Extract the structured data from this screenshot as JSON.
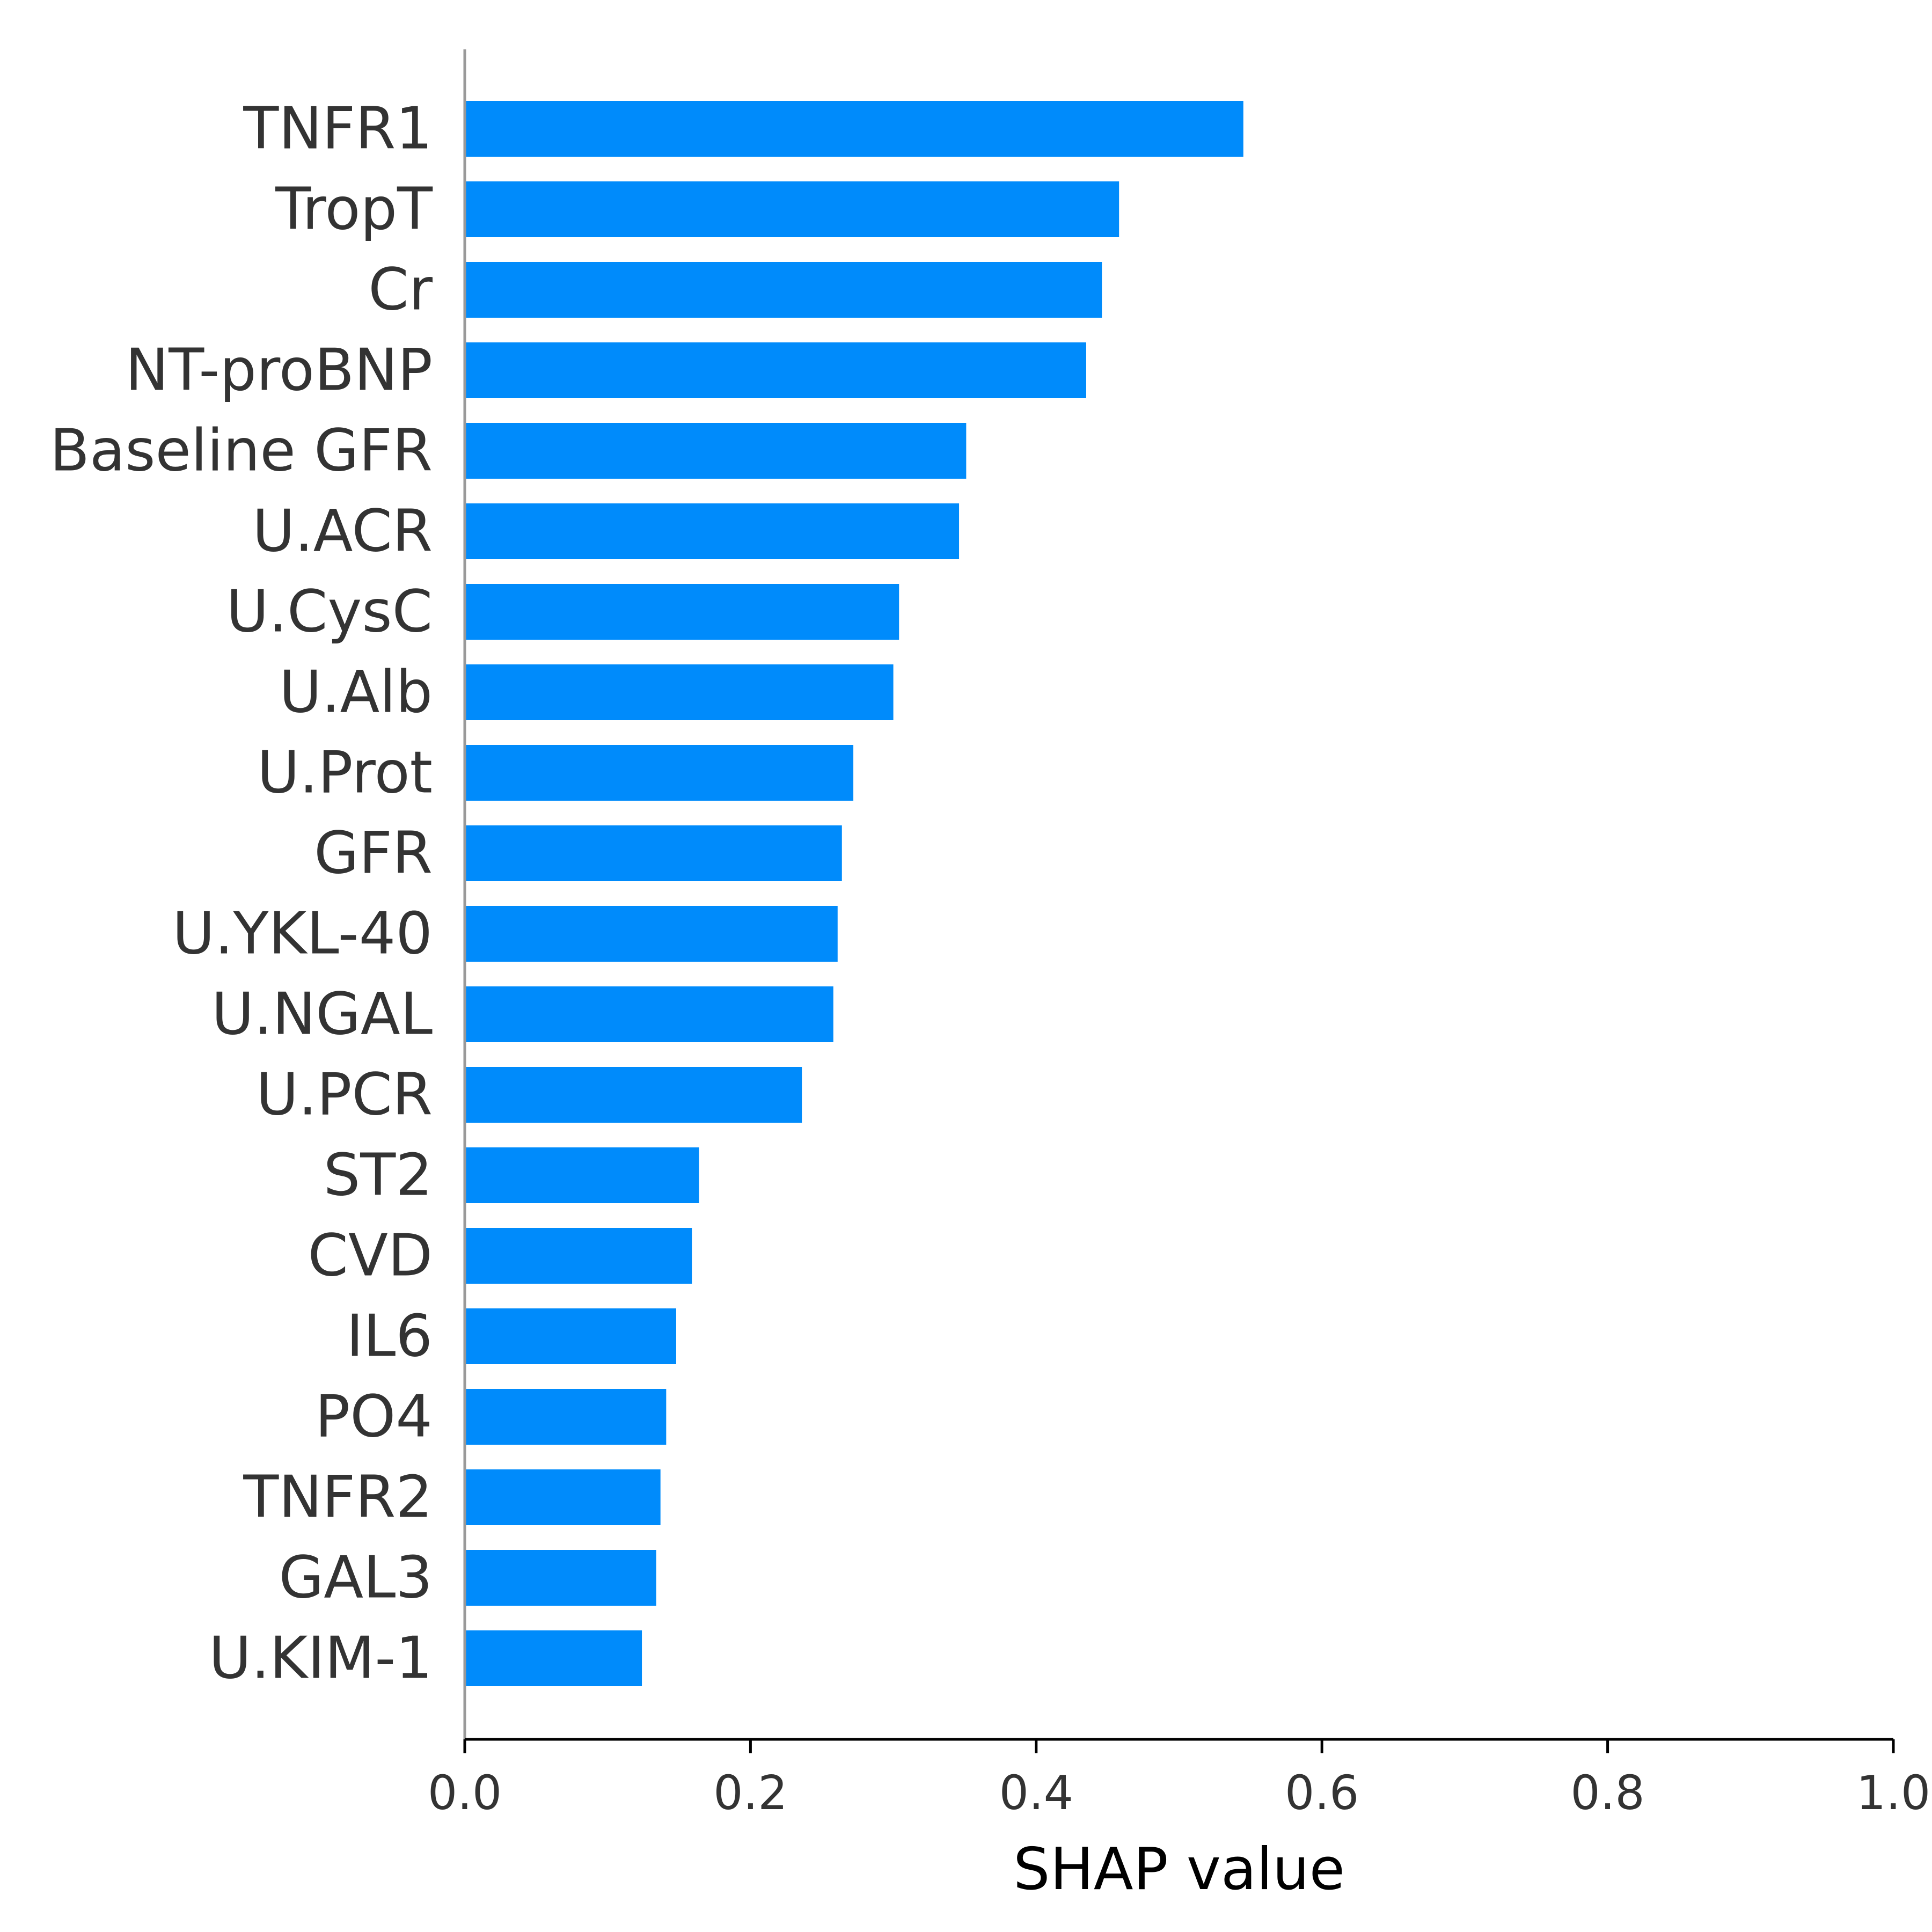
{
  "chart_data": {
    "type": "bar",
    "orientation": "horizontal",
    "categories": [
      "TNFR1",
      "TropT",
      "Cr",
      "NT-proBNP",
      "Baseline GFR",
      "U.ACR",
      "U.CysC",
      "U.Alb",
      "U.Prot",
      "GFR",
      "U.YKL-40",
      "U.NGAL",
      "U.PCR",
      "ST2",
      "CVD",
      "IL6",
      "PO4",
      "TNFR2",
      "GAL3",
      "U.KIM-1"
    ],
    "values": [
      0.545,
      0.458,
      0.446,
      0.435,
      0.351,
      0.346,
      0.304,
      0.3,
      0.272,
      0.264,
      0.261,
      0.258,
      0.236,
      0.164,
      0.159,
      0.148,
      0.141,
      0.137,
      0.134,
      0.124
    ],
    "xlabel": "SHAP value",
    "ylabel": "",
    "xlim": [
      0.0,
      1.0
    ],
    "xticks": [
      "0.0",
      "0.2",
      "0.4",
      "0.6",
      "0.8",
      "1.0"
    ],
    "grid": false,
    "legend": "none",
    "bar_color": "#008bfb",
    "axis_color": "#999999"
  }
}
